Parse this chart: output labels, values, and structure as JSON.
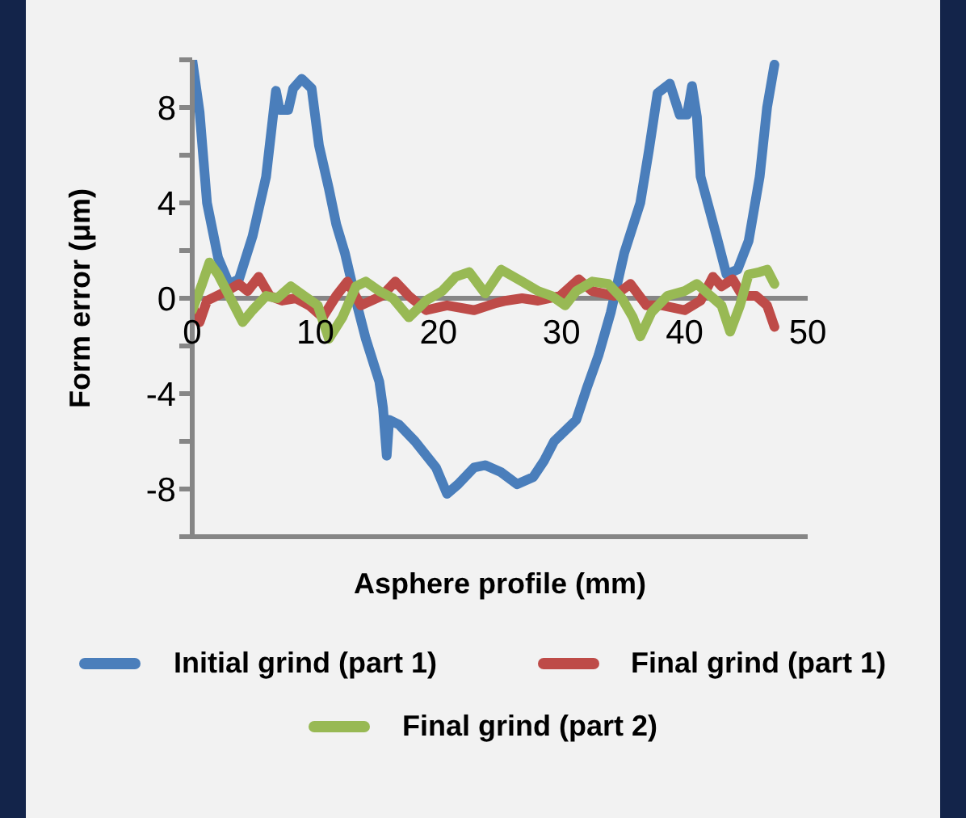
{
  "chart_data": {
    "type": "line",
    "xlabel": "Asphere profile (mm)",
    "ylabel": "Form error (μm)",
    "xlim": [
      0,
      50
    ],
    "xticks": [
      0,
      10,
      20,
      30,
      40,
      50
    ],
    "ylim": [
      -10,
      10
    ],
    "yticks": [
      {
        "value": -10,
        "label": null
      },
      -8,
      {
        "value": -6,
        "label": null
      },
      -4,
      {
        "value": -2,
        "label": null
      },
      0,
      {
        "value": 2,
        "label": null
      },
      4,
      {
        "value": 6,
        "label": null
      },
      8,
      {
        "value": 10,
        "label": null
      }
    ],
    "grid": false,
    "legend": "bottom",
    "marker": "none",
    "line_style": "solid",
    "series": [
      {
        "name": "Initial grind (part 1)",
        "color": "#4a7ebb",
        "x": [
          0,
          0.6,
          1.2,
          2.1,
          3.0,
          3.8,
          4.9,
          6.0,
          6.8,
          7.1,
          7.8,
          8.2,
          8.9,
          9.7,
          10.3,
          11.1,
          11.7,
          12.4,
          13.3,
          14.1,
          15.2,
          15.5,
          15.8,
          16.0,
          16.8,
          18.1,
          19.8,
          20.7,
          21.6,
          22.9,
          23.8,
          25.1,
          26.4,
          27.7,
          28.6,
          29.4,
          31.2,
          32.1,
          33.0,
          34.0,
          35.1,
          36.4,
          37.1,
          37.8,
          38.8,
          39.6,
          40.2,
          40.6,
          41.0,
          41.3,
          42.6,
          43.4,
          44.3,
          45.2,
          46.1,
          46.7,
          47.3
        ],
        "values": [
          10,
          7.8,
          4.0,
          1.7,
          0.6,
          0.8,
          2.6,
          5.1,
          8.7,
          7.9,
          7.9,
          8.8,
          9.2,
          8.8,
          6.4,
          4.6,
          3.1,
          1.9,
          -0.1,
          -1.7,
          -3.5,
          -4.6,
          -6.6,
          -5.1,
          -5.3,
          -6.0,
          -7.1,
          -8.2,
          -7.8,
          -7.1,
          -7.0,
          -7.3,
          -7.8,
          -7.5,
          -6.8,
          -6.0,
          -5.1,
          -3.7,
          -2.4,
          -0.6,
          1.9,
          4.0,
          6.2,
          8.6,
          9.0,
          7.7,
          7.7,
          8.9,
          7.6,
          5.1,
          2.6,
          1.0,
          1.2,
          2.4,
          5.1,
          8.0,
          9.8
        ]
      },
      {
        "name": "Final grind (part 1)",
        "color": "#be4b48",
        "x": [
          0,
          0.6,
          1.2,
          2.8,
          3.8,
          4.5,
          5.4,
          6.3,
          7.3,
          8.4,
          9.5,
          10.6,
          11.7,
          12.6,
          13.7,
          15.4,
          16.5,
          17.6,
          19.0,
          20.7,
          22.9,
          24.7,
          25.5,
          26.8,
          28.1,
          29.9,
          31.4,
          32.5,
          34.3,
          35.6,
          36.9,
          38.2,
          40.0,
          41.3,
          42.3,
          43.0,
          43.9,
          44.7,
          45.8,
          46.7,
          47.3
        ],
        "values": [
          -0.3,
          -1.0,
          -0.1,
          0.3,
          0.6,
          0.3,
          0.9,
          0.1,
          -0.1,
          0,
          -0.3,
          -0.8,
          0.1,
          0.7,
          -0.3,
          0.1,
          0.7,
          0.1,
          -0.5,
          -0.3,
          -0.5,
          -0.2,
          -0.1,
          0,
          -0.1,
          0.1,
          0.8,
          0.3,
          0.1,
          0.6,
          -0.3,
          -0.3,
          -0.5,
          -0.1,
          0.9,
          0.5,
          0.8,
          0.1,
          0.1,
          -0.3,
          -1.2
        ]
      },
      {
        "name": "Final grind (part 2)",
        "color": "#98b954",
        "x": [
          0,
          0.8,
          1.4,
          2.1,
          3.0,
          4.1,
          4.9,
          6.0,
          6.9,
          8.0,
          9.1,
          10.2,
          11.1,
          12.2,
          13.3,
          14.1,
          15.2,
          16.3,
          17.6,
          19.0,
          20.3,
          21.4,
          22.5,
          23.8,
          25.1,
          26.8,
          28.1,
          29.2,
          30.3,
          31.2,
          32.5,
          33.8,
          34.9,
          35.8,
          36.4,
          37.3,
          38.6,
          40.0,
          41.0,
          42.1,
          43.0,
          43.7,
          44.5,
          45.2,
          46.1,
          46.7,
          47.3
        ],
        "values": [
          -0.5,
          0.6,
          1.5,
          1.0,
          0.1,
          -1.0,
          -0.5,
          0.1,
          0,
          0.5,
          0.1,
          -0.3,
          -1.7,
          -0.8,
          0.5,
          0.7,
          0.3,
          0,
          -0.8,
          -0.1,
          0.3,
          0.9,
          1.1,
          0.2,
          1.2,
          0.7,
          0.3,
          0.1,
          -0.3,
          0.3,
          0.7,
          0.6,
          0,
          -0.8,
          -1.6,
          -0.6,
          0.1,
          0.3,
          0.6,
          0.1,
          -0.3,
          -1.4,
          -0.3,
          1.0,
          1.1,
          1.2,
          0.6
        ]
      }
    ]
  }
}
